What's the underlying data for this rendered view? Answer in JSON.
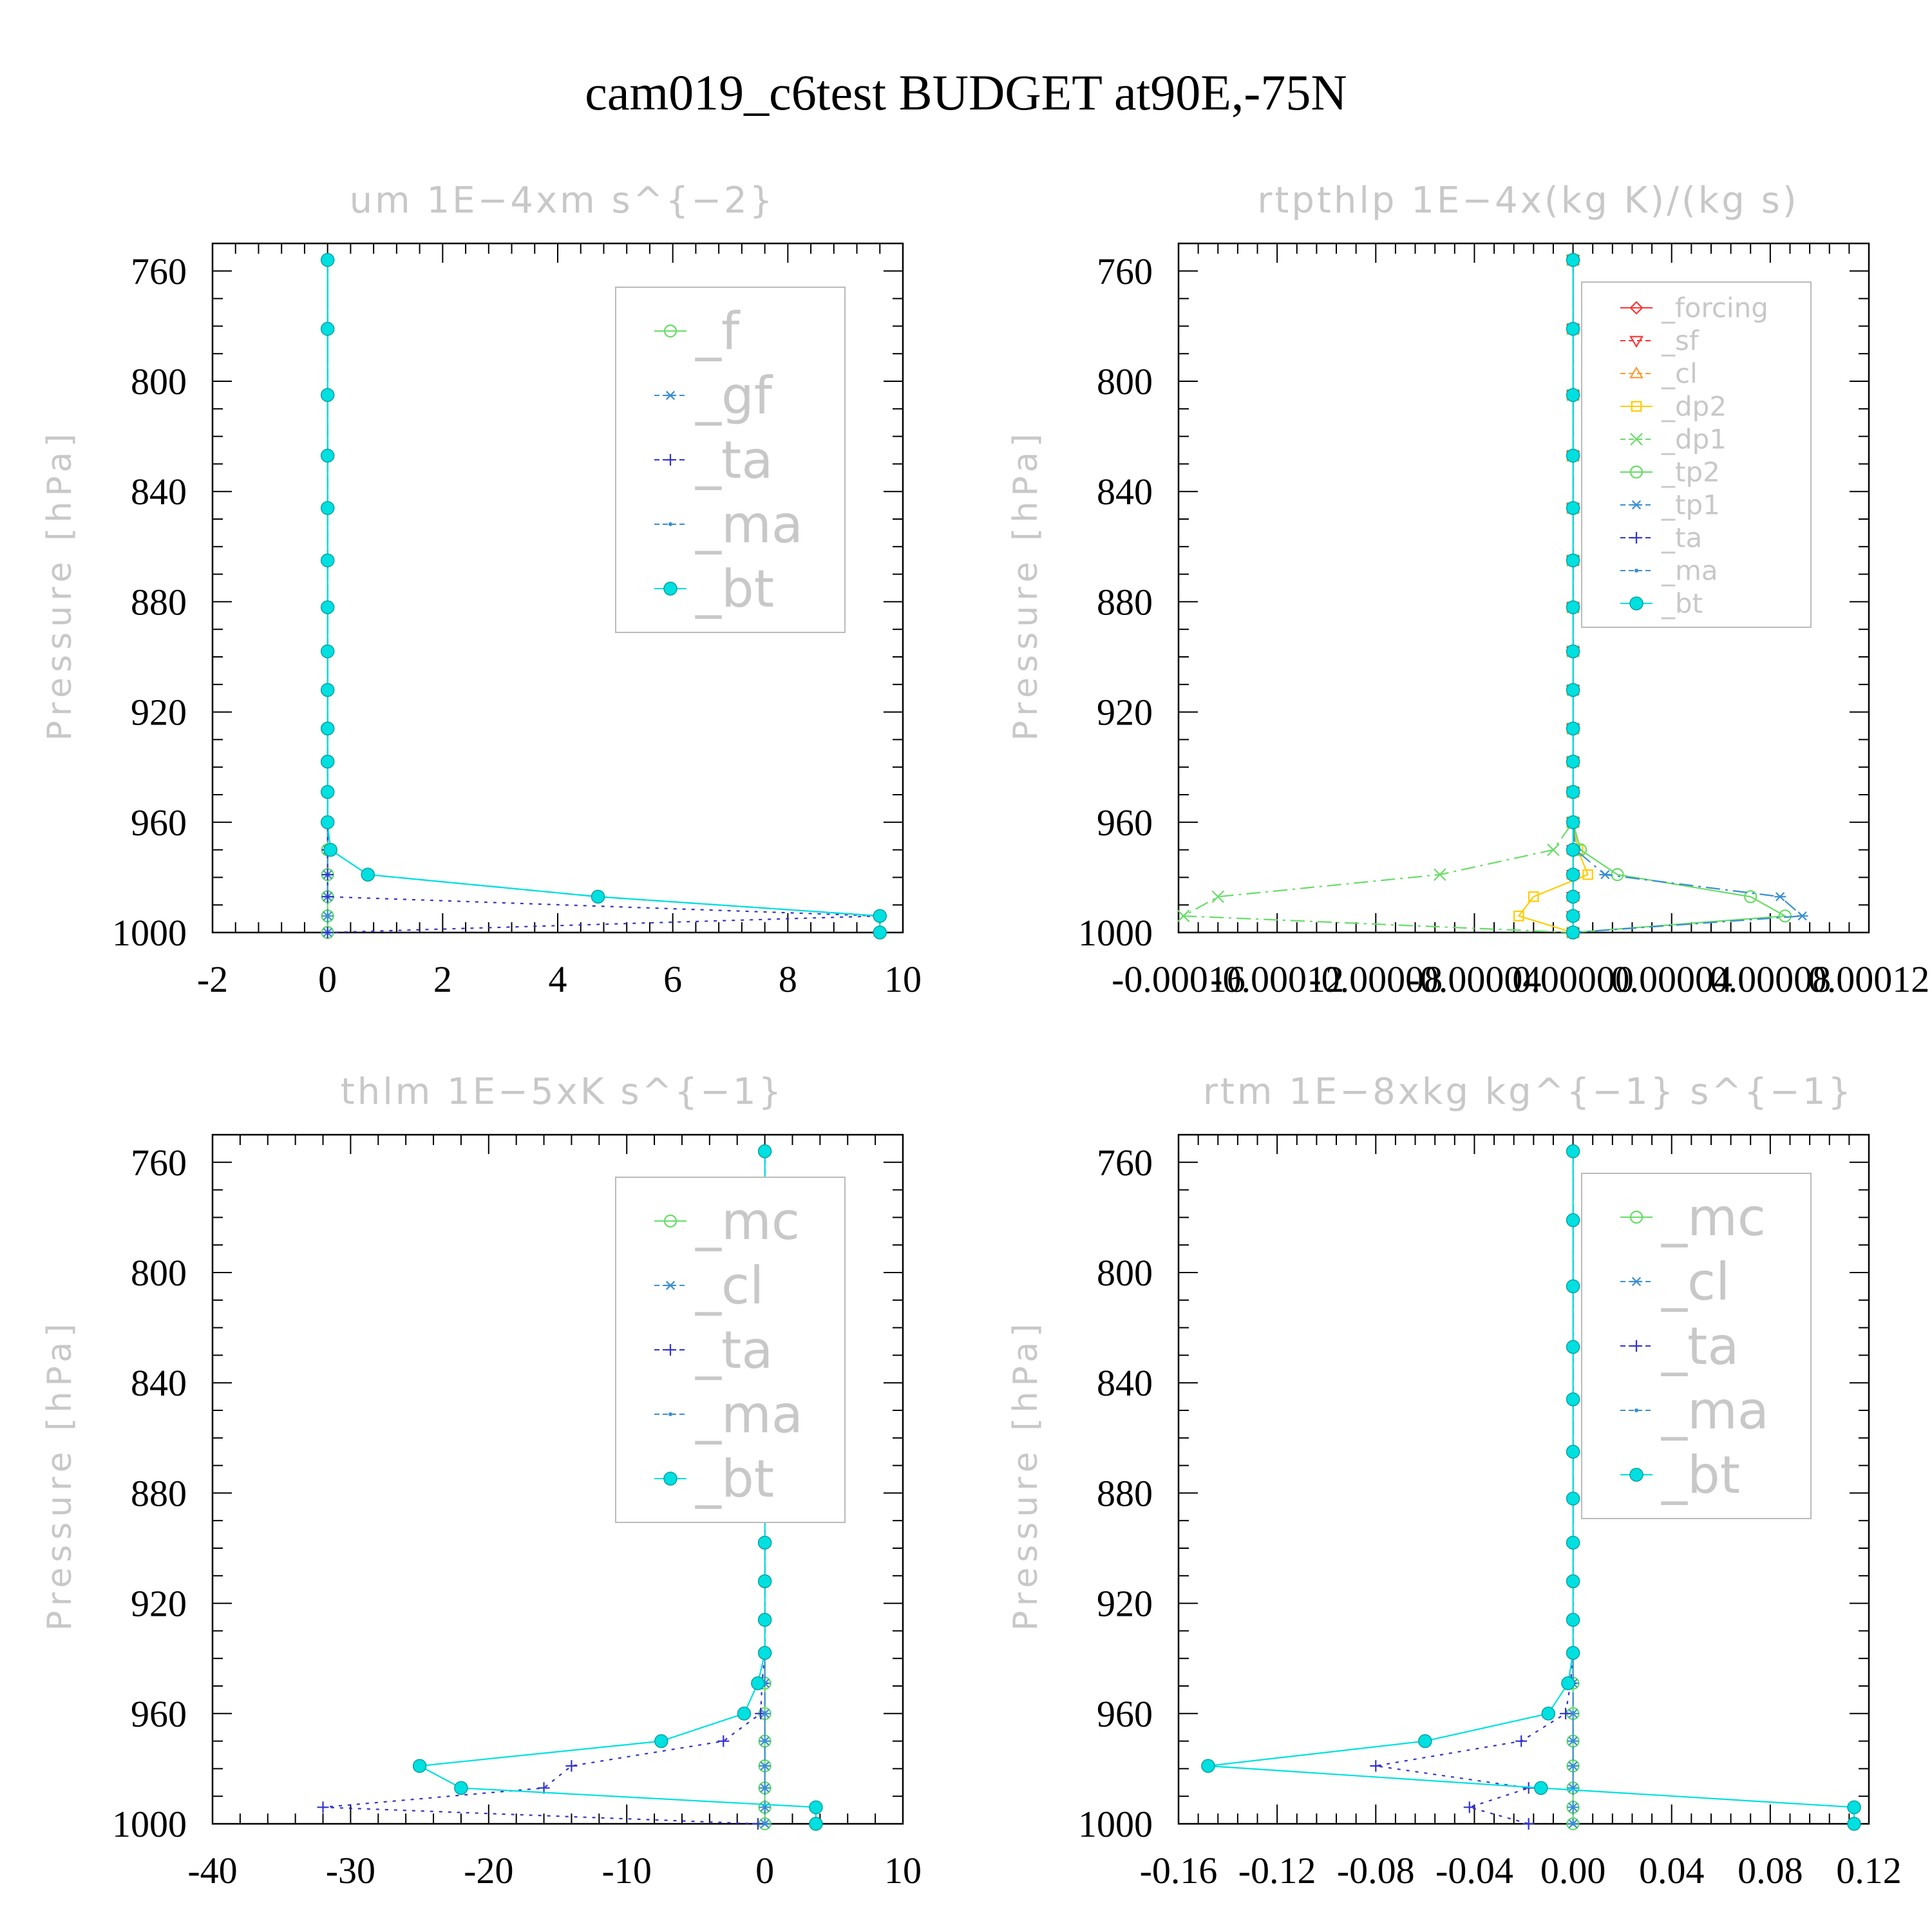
{
  "title": "cam019_c6test  BUDGET at90E,-75N",
  "colors": {
    "green": "#66dd66",
    "steelblue": "#3a8fd0",
    "blue": "#3333cc",
    "cyan": "#00e0e0",
    "red": "#ff3333",
    "orange": "#ff9933",
    "yellow": "#ffcc00"
  },
  "chart_data": [
    {
      "type": "line",
      "title": "um   1E−4xm  s^{−2}",
      "ylabel": "Pressure  [hPa]",
      "xlim": [
        -2,
        10
      ],
      "ylim": [
        1000,
        750
      ],
      "xticks": [
        "-2",
        "0",
        "2",
        "4",
        "6",
        "8",
        "10"
      ],
      "xtick_values": [
        -2,
        0,
        2,
        4,
        6,
        8,
        10
      ],
      "yticks": [
        "760",
        "800",
        "840",
        "880",
        "920",
        "960",
        "1000"
      ],
      "ytick_values": [
        760,
        800,
        840,
        880,
        920,
        960,
        1000
      ],
      "legend": {
        "position": "top-right"
      },
      "levels": [
        756,
        781,
        805,
        827,
        846,
        865,
        882,
        898,
        912,
        926,
        938,
        949,
        960,
        970,
        979,
        987,
        994,
        1000
      ],
      "series": [
        {
          "name": "_f",
          "color": "green",
          "marker": "circle-open",
          "dash": "solid",
          "values": [
            0,
            0,
            0,
            0,
            0,
            0,
            0,
            0,
            0,
            0,
            0,
            0,
            0,
            0,
            0,
            0,
            0,
            0
          ]
        },
        {
          "name": "_gf",
          "color": "steelblue",
          "marker": "asterisk",
          "dash": "dashdot",
          "values": [
            0,
            0,
            0,
            0,
            0,
            0,
            0,
            0,
            0,
            0,
            0,
            0,
            0,
            0,
            0,
            0,
            0,
            0
          ]
        },
        {
          "name": "_ta",
          "color": "blue",
          "marker": "plus",
          "dash": "dotted",
          "values": [
            0,
            0,
            0,
            0,
            0,
            0,
            0,
            0,
            0,
            0,
            0,
            0,
            0,
            0,
            0,
            0,
            9.6,
            0
          ]
        },
        {
          "name": "_ma",
          "color": "steelblue",
          "marker": "dot",
          "dash": "dashed",
          "values": [
            0,
            0,
            0,
            0,
            0,
            0,
            0,
            0,
            0,
            0,
            0,
            0,
            0,
            0.05,
            0.7,
            4.7,
            9.6,
            9.6
          ]
        },
        {
          "name": "_bt",
          "color": "cyan",
          "marker": "filled",
          "dash": "solid",
          "values": [
            0,
            0,
            0,
            0,
            0,
            0,
            0,
            0,
            0,
            0,
            0,
            0,
            0,
            0.05,
            0.7,
            4.7,
            9.6,
            9.6
          ]
        }
      ]
    },
    {
      "type": "line",
      "title": "rtpthlp   1E−4x(kg  K)/(kg  s)",
      "ylabel": "Pressure  [hPa]",
      "xlim": [
        -0.00016,
        0.00012
      ],
      "ylim": [
        1000,
        750
      ],
      "xticks": [
        "-0.00016",
        "-0.00012",
        "-0.00008",
        "-0.00004",
        "0.00000",
        "0.00004",
        "0.00008",
        "0.00012"
      ],
      "xtick_values": [
        -0.00016,
        -0.00012,
        -8e-05,
        -4e-05,
        0,
        4e-05,
        8e-05,
        0.00012
      ],
      "yticks": [
        "760",
        "800",
        "840",
        "880",
        "920",
        "960",
        "1000"
      ],
      "ytick_values": [
        760,
        800,
        840,
        880,
        920,
        960,
        1000
      ],
      "legend": {
        "position": "top-right"
      },
      "levels": [
        756,
        781,
        805,
        827,
        846,
        865,
        882,
        898,
        912,
        926,
        938,
        949,
        960,
        970,
        979,
        987,
        994,
        1000
      ],
      "series": [
        {
          "name": "_forcing",
          "color": "red",
          "marker": "diamond",
          "dash": "solid",
          "values": [
            0,
            0,
            0,
            0,
            0,
            0,
            0,
            0,
            0,
            0,
            0,
            0,
            0,
            0,
            0,
            0,
            0,
            0
          ]
        },
        {
          "name": "_sf",
          "color": "red",
          "marker": "tri-down",
          "dash": "dashed",
          "values": [
            0,
            0,
            0,
            0,
            0,
            0,
            0,
            0,
            0,
            0,
            0,
            0,
            0,
            0,
            0,
            0,
            0,
            0
          ]
        },
        {
          "name": "_cl",
          "color": "orange",
          "marker": "tri-up",
          "dash": "dashdot",
          "values": [
            0,
            0,
            0,
            0,
            0,
            0,
            0,
            0,
            0,
            0,
            0,
            0,
            0,
            0,
            0,
            0,
            0,
            0
          ]
        },
        {
          "name": "_dp2",
          "color": "yellow",
          "marker": "square",
          "dash": "solid",
          "values": [
            0,
            0,
            0,
            0,
            0,
            0,
            0,
            0,
            0,
            0,
            0,
            0,
            0,
            2e-06,
            6e-06,
            -1.6e-05,
            -2.2e-05,
            0
          ]
        },
        {
          "name": "_dp1",
          "color": "green",
          "marker": "cross",
          "dash": "dashdot",
          "values": [
            0,
            0,
            0,
            0,
            0,
            0,
            0,
            0,
            0,
            0,
            0,
            0,
            0,
            -8e-06,
            -5.4e-05,
            -0.000144,
            -0.000158,
            0
          ]
        },
        {
          "name": "_tp2",
          "color": "green",
          "marker": "circle-open",
          "dash": "solid",
          "values": [
            0,
            0,
            0,
            0,
            0,
            0,
            0,
            0,
            0,
            0,
            0,
            0,
            0,
            3e-06,
            1.8e-05,
            7.2e-05,
            8.6e-05,
            0
          ]
        },
        {
          "name": "_tp1",
          "color": "steelblue",
          "marker": "asterisk",
          "dash": "dashdot",
          "values": [
            0,
            0,
            0,
            0,
            0,
            0,
            0,
            0,
            0,
            0,
            0,
            0,
            0,
            1e-06,
            1.3e-05,
            8.4e-05,
            9.3e-05,
            0
          ]
        },
        {
          "name": "_ta",
          "color": "blue",
          "marker": "plus",
          "dash": "dotted",
          "values": [
            0,
            0,
            0,
            0,
            0,
            0,
            0,
            0,
            0,
            0,
            0,
            0,
            0,
            0,
            0,
            0,
            0,
            0
          ]
        },
        {
          "name": "_ma",
          "color": "steelblue",
          "marker": "dot",
          "dash": "dashed",
          "values": [
            0,
            0,
            0,
            0,
            0,
            0,
            0,
            0,
            0,
            0,
            0,
            0,
            0,
            0,
            0,
            0,
            0,
            0
          ]
        },
        {
          "name": "_bt",
          "color": "cyan",
          "marker": "filled",
          "dash": "solid",
          "values": [
            0,
            0,
            0,
            0,
            0,
            0,
            0,
            0,
            0,
            0,
            0,
            0,
            0,
            0,
            0,
            0,
            0,
            0
          ]
        }
      ]
    },
    {
      "type": "line",
      "title": "thlm   1E−5xK  s^{−1}",
      "ylabel": "Pressure  [hPa]",
      "xlim": [
        -40,
        10
      ],
      "ylim": [
        1000,
        750
      ],
      "xticks": [
        "-40",
        "-30",
        "-20",
        "-10",
        "0",
        "10"
      ],
      "xtick_values": [
        -40,
        -30,
        -20,
        -10,
        0,
        10
      ],
      "yticks": [
        "760",
        "800",
        "840",
        "880",
        "920",
        "960",
        "1000"
      ],
      "ytick_values": [
        760,
        800,
        840,
        880,
        920,
        960,
        1000
      ],
      "legend": {
        "position": "top-right"
      },
      "levels": [
        756,
        781,
        805,
        827,
        846,
        865,
        882,
        898,
        912,
        926,
        938,
        949,
        960,
        970,
        979,
        987,
        994,
        1000
      ],
      "series": [
        {
          "name": "_mc",
          "color": "green",
          "marker": "circle-open",
          "dash": "solid",
          "values": [
            0,
            0,
            0,
            0,
            0,
            0,
            0,
            0,
            0,
            0,
            0,
            0,
            0,
            0,
            0,
            0,
            0,
            0
          ]
        },
        {
          "name": "_cl",
          "color": "steelblue",
          "marker": "asterisk",
          "dash": "dashdot",
          "values": [
            0,
            0,
            0,
            0,
            0,
            0,
            0,
            0,
            0,
            0,
            0,
            0,
            0,
            0,
            0,
            0,
            0,
            0
          ]
        },
        {
          "name": "_ta",
          "color": "blue",
          "marker": "plus",
          "dash": "dotted",
          "values": [
            0,
            0,
            0,
            0,
            0,
            0,
            0,
            0,
            0,
            0,
            0,
            -0.2,
            -0.3,
            -3,
            -14,
            -16,
            -32,
            -0.5
          ]
        },
        {
          "name": "_ma",
          "color": "steelblue",
          "marker": "dot",
          "dash": "dashed",
          "values": [
            0,
            0,
            0,
            0,
            0,
            0,
            0,
            0,
            0,
            0,
            0,
            0,
            0,
            0,
            0,
            0,
            0,
            0
          ]
        },
        {
          "name": "_bt",
          "color": "cyan",
          "marker": "filled",
          "dash": "solid",
          "values": [
            0,
            0,
            0,
            0,
            0,
            0,
            0,
            0,
            0,
            0,
            0,
            -0.5,
            -1.5,
            -7.5,
            -25,
            -22,
            3.7,
            3.7
          ]
        }
      ]
    },
    {
      "type": "line",
      "title": "rtm   1E−8xkg  kg^{−1}  s^{−1}",
      "ylabel": "Pressure  [hPa]",
      "xlim": [
        -0.16,
        0.12
      ],
      "ylim": [
        1000,
        750
      ],
      "xticks": [
        "-0.16",
        "-0.12",
        "-0.08",
        "-0.04",
        "0.00",
        "0.04",
        "0.08",
        "0.12"
      ],
      "xtick_values": [
        -0.16,
        -0.12,
        -0.08,
        -0.04,
        0,
        0.04,
        0.08,
        0.12
      ],
      "yticks": [
        "760",
        "800",
        "840",
        "880",
        "920",
        "960",
        "1000"
      ],
      "ytick_values": [
        760,
        800,
        840,
        880,
        920,
        960,
        1000
      ],
      "legend": {
        "position": "top-right"
      },
      "levels": [
        756,
        781,
        805,
        827,
        846,
        865,
        882,
        898,
        912,
        926,
        938,
        949,
        960,
        970,
        979,
        987,
        994,
        1000
      ],
      "series": [
        {
          "name": "_mc",
          "color": "green",
          "marker": "circle-open",
          "dash": "solid",
          "values": [
            0,
            0,
            0,
            0,
            0,
            0,
            0,
            0,
            0,
            0,
            0,
            0,
            0,
            0,
            0,
            0,
            0,
            0
          ]
        },
        {
          "name": "_cl",
          "color": "steelblue",
          "marker": "asterisk",
          "dash": "dashdot",
          "values": [
            0,
            0,
            0,
            0,
            0,
            0,
            0,
            0,
            0,
            0,
            0,
            0,
            0,
            0,
            0,
            0,
            0,
            0
          ]
        },
        {
          "name": "_ta",
          "color": "blue",
          "marker": "plus",
          "dash": "dotted",
          "values": [
            0,
            0,
            0,
            0,
            0,
            0,
            0,
            0,
            0,
            0,
            0,
            -0.001,
            -0.003,
            -0.021,
            -0.08,
            -0.018,
            -0.042,
            -0.018
          ]
        },
        {
          "name": "_ma",
          "color": "steelblue",
          "marker": "dot",
          "dash": "dashed",
          "values": [
            0,
            0,
            0,
            0,
            0,
            0,
            0,
            0,
            0,
            0,
            0,
            0,
            0,
            0,
            0,
            0,
            0,
            0
          ]
        },
        {
          "name": "_bt",
          "color": "cyan",
          "marker": "filled",
          "dash": "solid",
          "values": [
            0,
            0,
            0,
            0,
            0,
            0,
            0,
            0,
            0,
            0,
            0,
            -0.002,
            -0.01,
            -0.06,
            -0.148,
            -0.013,
            0.114,
            0.114
          ]
        }
      ]
    }
  ]
}
